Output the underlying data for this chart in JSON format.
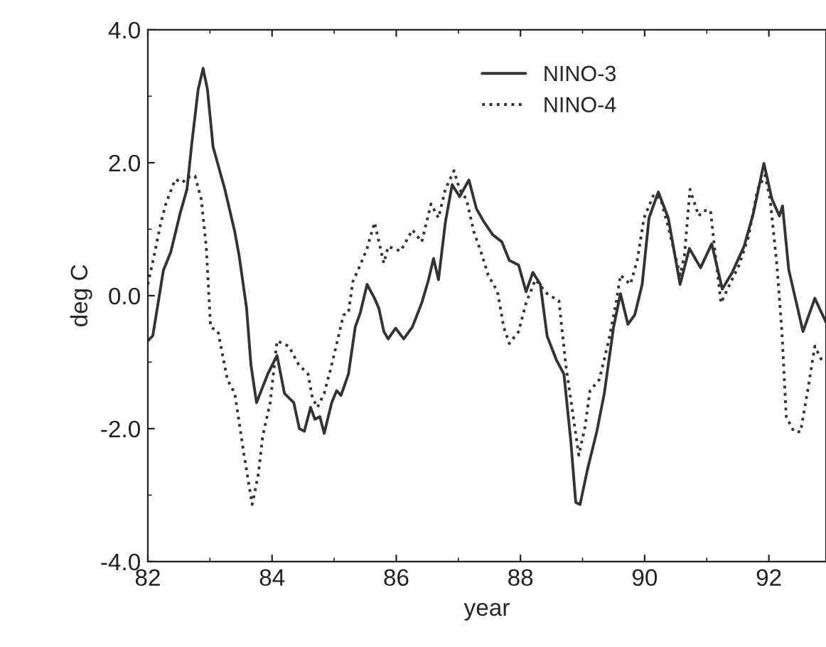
{
  "chart_data": {
    "type": "line",
    "xlabel": "year",
    "ylabel": "deg C",
    "xlim": [
      82,
      92.92
    ],
    "ylim": [
      -4,
      4
    ],
    "xticks": [
      82,
      84,
      86,
      88,
      90,
      92
    ],
    "yticks": [
      {
        "value": -4,
        "label": "-4.0"
      },
      {
        "value": -2,
        "label": "-2.0"
      },
      {
        "value": 0,
        "label": "0.0"
      },
      {
        "value": 2,
        "label": "2.0"
      },
      {
        "value": 4,
        "label": "4.0"
      }
    ],
    "grid": false,
    "legend": "top right",
    "series": [
      {
        "name": "NINO-3",
        "color": "#333333",
        "line_style": "solid",
        "x": [
          82.0,
          82.08,
          82.25,
          82.37,
          82.52,
          82.63,
          82.71,
          82.81,
          82.89,
          82.96,
          83.05,
          83.24,
          83.4,
          83.47,
          83.59,
          83.66,
          83.75,
          83.93,
          84.08,
          84.2,
          84.35,
          84.44,
          84.52,
          84.62,
          84.69,
          84.77,
          84.84,
          84.96,
          85.04,
          85.11,
          85.23,
          85.34,
          85.42,
          85.53,
          85.65,
          85.72,
          85.8,
          85.87,
          85.99,
          86.12,
          86.26,
          86.41,
          86.52,
          86.6,
          86.68,
          86.79,
          86.9,
          87.02,
          87.17,
          87.29,
          87.4,
          87.55,
          87.7,
          87.82,
          87.97,
          88.09,
          88.2,
          88.32,
          88.43,
          88.58,
          88.7,
          88.81,
          88.89,
          88.96,
          89.08,
          89.23,
          89.35,
          89.5,
          89.61,
          89.73,
          89.84,
          89.96,
          90.07,
          90.22,
          90.38,
          90.57,
          90.72,
          90.9,
          91.08,
          91.25,
          91.41,
          91.6,
          91.75,
          91.92,
          92.05,
          92.17,
          92.22,
          92.32,
          92.55,
          92.74,
          92.92
        ],
        "values": [
          -0.68,
          -0.6,
          0.38,
          0.66,
          1.24,
          1.6,
          2.31,
          3.1,
          3.42,
          3.1,
          2.24,
          1.6,
          0.96,
          0.6,
          -0.19,
          -1.04,
          -1.61,
          -1.18,
          -0.9,
          -1.47,
          -1.61,
          -2.0,
          -2.04,
          -1.68,
          -1.86,
          -1.82,
          -2.07,
          -1.61,
          -1.43,
          -1.5,
          -1.18,
          -0.47,
          -0.26,
          0.17,
          -0.04,
          -0.19,
          -0.54,
          -0.65,
          -0.49,
          -0.65,
          -0.47,
          -0.11,
          0.24,
          0.56,
          0.24,
          1.1,
          1.67,
          1.49,
          1.74,
          1.31,
          1.13,
          0.92,
          0.81,
          0.53,
          0.46,
          0.06,
          0.35,
          0.17,
          -0.61,
          -0.97,
          -1.18,
          -2.18,
          -3.11,
          -3.14,
          -2.61,
          -2.04,
          -1.47,
          -0.47,
          0.03,
          -0.43,
          -0.29,
          0.17,
          1.17,
          1.56,
          1.17,
          0.17,
          0.71,
          0.42,
          0.78,
          0.1,
          0.35,
          0.74,
          1.24,
          1.99,
          1.45,
          1.2,
          1.35,
          0.39,
          -0.54,
          -0.04,
          -0.4
        ]
      },
      {
        "name": "NINO-4",
        "color": "#333333",
        "line_style": "dotted",
        "x": [
          82.0,
          82.1,
          82.21,
          82.29,
          82.44,
          82.56,
          82.63,
          82.76,
          82.86,
          82.94,
          83.01,
          83.13,
          83.28,
          83.4,
          83.55,
          83.68,
          83.78,
          83.85,
          83.97,
          84.08,
          84.27,
          84.43,
          84.58,
          84.65,
          84.73,
          84.84,
          84.96,
          85.07,
          85.15,
          85.23,
          85.3,
          85.42,
          85.53,
          85.65,
          85.8,
          85.87,
          86.07,
          86.26,
          86.41,
          86.56,
          86.68,
          86.79,
          86.93,
          87.02,
          87.13,
          87.25,
          87.36,
          87.48,
          87.63,
          87.73,
          87.82,
          87.97,
          88.09,
          88.24,
          88.43,
          88.62,
          88.73,
          88.85,
          88.94,
          89.04,
          89.12,
          89.27,
          89.42,
          89.54,
          89.61,
          89.77,
          89.88,
          89.99,
          90.15,
          90.26,
          90.38,
          90.57,
          90.64,
          90.73,
          90.87,
          90.95,
          91.06,
          91.14,
          91.23,
          91.37,
          91.52,
          91.67,
          91.82,
          91.94,
          92.02,
          92.13,
          92.21,
          92.28,
          92.4,
          92.51,
          92.63,
          92.74,
          92.85
        ],
        "values": [
          0.17,
          0.6,
          1.1,
          1.38,
          1.75,
          1.7,
          1.78,
          1.8,
          1.45,
          0.74,
          -0.47,
          -0.54,
          -1.26,
          -1.47,
          -2.4,
          -3.14,
          -2.68,
          -2.11,
          -1.61,
          -0.68,
          -0.76,
          -1.04,
          -1.18,
          -1.54,
          -1.68,
          -1.47,
          -1.04,
          -0.61,
          -0.29,
          -0.26,
          0.21,
          0.46,
          0.71,
          1.1,
          0.49,
          0.74,
          0.67,
          0.99,
          0.81,
          1.38,
          1.17,
          1.6,
          1.88,
          1.6,
          1.45,
          0.96,
          0.67,
          0.31,
          0.06,
          -0.47,
          -0.72,
          -0.54,
          -0.11,
          0.24,
          0.03,
          -0.08,
          -1.04,
          -1.82,
          -2.4,
          -1.97,
          -1.43,
          -1.26,
          -0.68,
          -0.11,
          0.31,
          0.17,
          0.53,
          1.17,
          1.53,
          1.45,
          1.03,
          0.31,
          0.6,
          1.6,
          1.2,
          1.28,
          1.28,
          0.6,
          -0.11,
          0.17,
          0.46,
          0.88,
          1.6,
          1.81,
          1.45,
          0.46,
          -0.54,
          -1.82,
          -2.04,
          -2.05,
          -1.4,
          -0.76,
          -0.97
        ]
      }
    ]
  }
}
